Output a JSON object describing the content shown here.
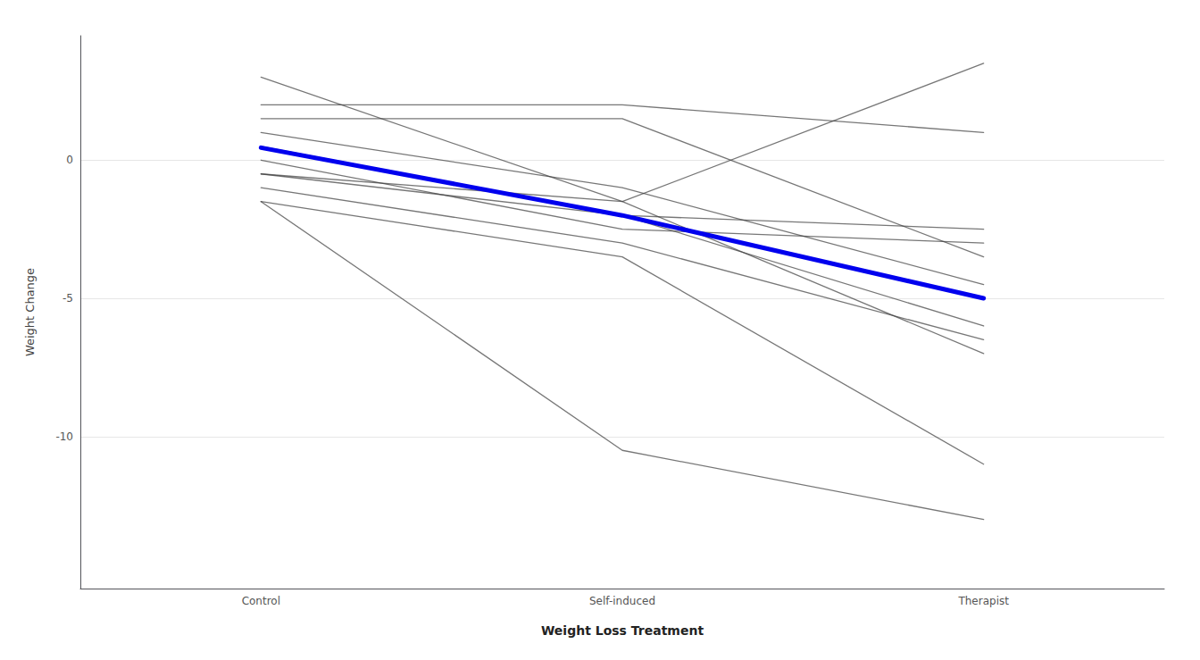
{
  "chart_data": {
    "type": "line",
    "xlabel": "Weight Loss Treatment",
    "ylabel": "Weight Change",
    "categories": [
      "Control",
      "Self-induced",
      "Therapist"
    ],
    "series": [
      {
        "color": "#3d3d3d",
        "values": [
          3.0,
          -1.5,
          3.5
        ]
      },
      {
        "color": "#3d3d3d",
        "values": [
          2.0,
          2.0,
          1.0
        ]
      },
      {
        "color": "#3d3d3d",
        "values": [
          1.5,
          1.5,
          -3.5
        ]
      },
      {
        "color": "#3d3d3d",
        "values": [
          1.0,
          -1.0,
          -4.5
        ]
      },
      {
        "color": "#3d3d3d",
        "values": [
          0.5,
          -2.0,
          -6.0
        ]
      },
      {
        "color": "#3d3d3d",
        "values": [
          0.0,
          -2.5,
          -3.0
        ]
      },
      {
        "color": "#3d3d3d",
        "values": [
          -0.5,
          -2.0,
          -2.5
        ]
      },
      {
        "color": "#3d3d3d",
        "values": [
          -0.5,
          -1.5,
          -7.0
        ]
      },
      {
        "color": "#3d3d3d",
        "values": [
          -1.0,
          -3.0,
          -6.5
        ]
      },
      {
        "color": "#3d3d3d",
        "values": [
          -1.5,
          -3.5,
          -11.0
        ]
      },
      {
        "color": "#3d3d3d",
        "values": [
          -1.5,
          -10.5,
          -13.0
        ]
      },
      {
        "color": "#0000EE",
        "values": [
          0.45,
          -2.0,
          -5.0
        ]
      }
    ],
    "ylim": [
      -15.5,
      4.5
    ],
    "yticks": [
      0,
      -5,
      -10
    ],
    "grid": true
  }
}
